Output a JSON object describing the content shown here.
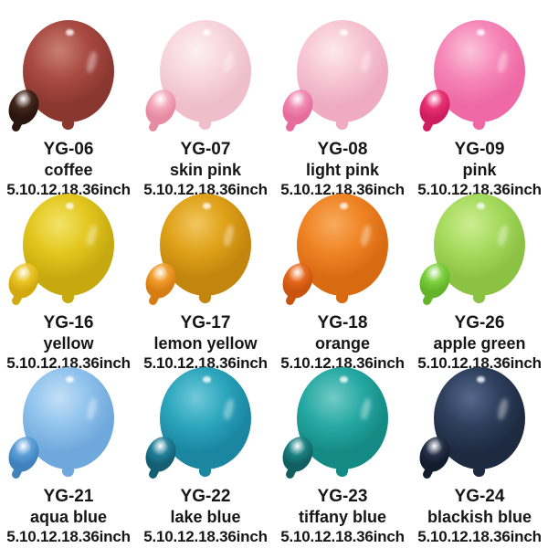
{
  "page": {
    "background": "#ffffff",
    "text_color": "#161616"
  },
  "products": [
    {
      "code": "YG-06",
      "name": "coffee",
      "sizes": "5.10.12.18.36inch",
      "colors": {
        "light": "#c87f72",
        "main": "#a84a42",
        "dark": "#8a3730",
        "small_main": "#41251a",
        "small_dark": "#2a160e"
      }
    },
    {
      "code": "YG-07",
      "name": "skin pink",
      "sizes": "5.10.12.18.36inch",
      "colors": {
        "light": "#fdf0f2",
        "main": "#f8d6dd",
        "dark": "#eebfca",
        "small_main": "#f2a8ba",
        "small_dark": "#e78ba4"
      }
    },
    {
      "code": "YG-08",
      "name": "light pink",
      "sizes": "5.10.12.18.36inch",
      "colors": {
        "light": "#fde9ef",
        "main": "#f7c6d5",
        "dark": "#eeabc2",
        "small_main": "#f089b0",
        "small_dark": "#e56c9d"
      }
    },
    {
      "code": "YG-09",
      "name": "pink",
      "sizes": "5.10.12.18.36inch",
      "colors": {
        "light": "#fbc4da",
        "main": "#f687b8",
        "dark": "#ee69a5",
        "small_main": "#e73172",
        "small_dark": "#cf1e60"
      }
    },
    {
      "code": "YG-16",
      "name": "yellow",
      "sizes": "5.10.12.18.36inch",
      "colors": {
        "light": "#f4e468",
        "main": "#e3c71f",
        "dark": "#c5a90f",
        "small_main": "#eac424",
        "small_dark": "#d2a90f"
      }
    },
    {
      "code": "YG-17",
      "name": "lemon yellow",
      "sizes": "5.10.12.18.36inch",
      "colors": {
        "light": "#f2c75f",
        "main": "#dfa118",
        "dark": "#c2850d",
        "small_main": "#ef9b28",
        "small_dark": "#d67d14"
      }
    },
    {
      "code": "YG-18",
      "name": "orange",
      "sizes": "5.10.12.18.36inch",
      "colors": {
        "light": "#f8ab5e",
        "main": "#ef8424",
        "dark": "#d86a12",
        "small_main": "#e5681c",
        "small_dark": "#c8540e"
      }
    },
    {
      "code": "YG-26",
      "name": "apple green",
      "sizes": "5.10.12.18.36inch",
      "colors": {
        "light": "#cdee93",
        "main": "#a6da5e",
        "dark": "#8bc244",
        "small_main": "#7ed13f",
        "small_dark": "#63b42a"
      }
    },
    {
      "code": "YG-21",
      "name": "aqua blue",
      "sizes": "5.10.12.18.36inch",
      "colors": {
        "light": "#c4e0f6",
        "main": "#90c3ed",
        "dark": "#6fa8dc",
        "small_main": "#5c9fd7",
        "small_dark": "#4182bd"
      }
    },
    {
      "code": "YG-22",
      "name": "lake blue",
      "sizes": "5.10.12.18.36inch",
      "colors": {
        "light": "#72c9da",
        "main": "#2ca6bd",
        "dark": "#1a86a0",
        "small_main": "#1f7e96",
        "small_dark": "#145f74"
      }
    },
    {
      "code": "YG-23",
      "name": "tiffany blue",
      "sizes": "5.10.12.18.36inch",
      "colors": {
        "light": "#72cbc6",
        "main": "#27a9a3",
        "dark": "#148a85",
        "small_main": "#1c8081",
        "small_dark": "#115f61"
      }
    },
    {
      "code": "YG-24",
      "name": "blackish blue",
      "sizes": "5.10.12.18.36inch",
      "colors": {
        "light": "#55688c",
        "main": "#2e3f5d",
        "dark": "#1d2a40",
        "small_main": "#232f47",
        "small_dark": "#131c2d"
      }
    }
  ]
}
